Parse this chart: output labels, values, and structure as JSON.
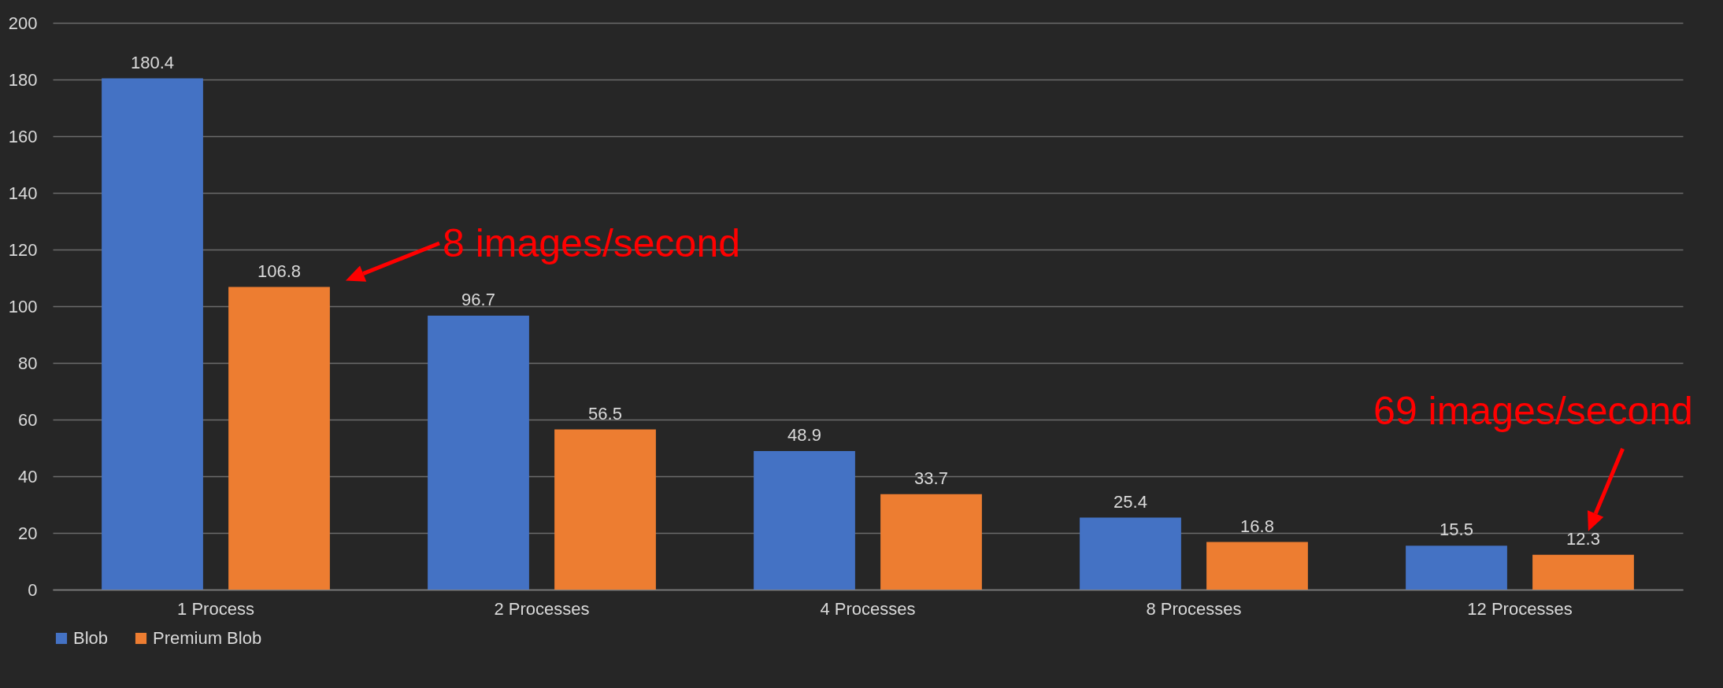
{
  "chart_data": {
    "type": "bar",
    "categories": [
      "1 Process",
      "2 Processes",
      "4 Processes",
      "8 Processes",
      "12 Processes"
    ],
    "series": [
      {
        "name": "Blob",
        "color": "#4472c4",
        "values": [
          180.4,
          96.7,
          48.9,
          25.4,
          15.5
        ]
      },
      {
        "name": "Premium Blob",
        "color": "#ed7d31",
        "values": [
          106.8,
          56.5,
          33.7,
          16.8,
          12.3
        ]
      }
    ],
    "ylim": [
      0,
      200
    ],
    "yticks": [
      0,
      20,
      40,
      60,
      80,
      100,
      120,
      140,
      160,
      180,
      200
    ],
    "grid": "y",
    "legend": "bottom",
    "data_labels": true,
    "annotations": [
      "8 images/second",
      "69 images/second"
    ]
  }
}
